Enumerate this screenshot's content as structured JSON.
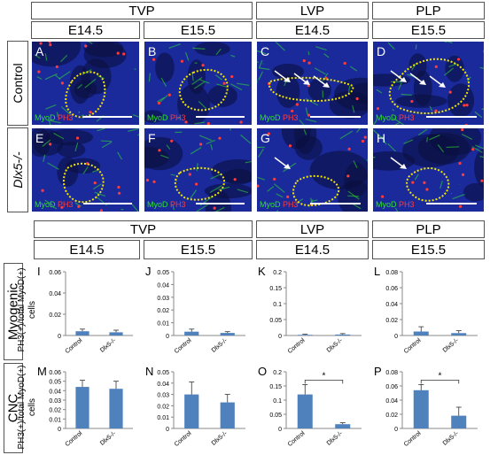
{
  "top": {
    "groups": [
      "TVP",
      "LVP",
      "PLP"
    ],
    "stages": [
      "E14.5",
      "E15.5",
      "E14.5",
      "E15.5"
    ],
    "rows": [
      "Control",
      "Dlx5-/-"
    ],
    "panel_letters": [
      "A",
      "B",
      "C",
      "D",
      "E",
      "F",
      "G",
      "H"
    ],
    "stain": {
      "green": "MyoD",
      "red": "PH3"
    },
    "colors": {
      "nuclei": "#1a2a9a",
      "myod": "#2fe02f",
      "ph3": "#ff3b3b",
      "outline": "#f2e600"
    }
  },
  "bottom": {
    "groups": [
      "TVP",
      "LVP",
      "PLP"
    ],
    "stages": [
      "E14.5",
      "E15.5",
      "E14.5",
      "E15.5"
    ],
    "rows": [
      "Myogenic",
      "CNC"
    ],
    "ylabel": "PH3(+)/total MyoD(+) cells",
    "panel_letters": [
      "I",
      "J",
      "K",
      "L",
      "M",
      "N",
      "O",
      "P"
    ],
    "bar_color": "#4f81bd"
  },
  "chart_data": [
    {
      "panel": "I",
      "type": "bar",
      "categories": [
        "Control",
        "Dlx5-/-"
      ],
      "values": [
        0.004,
        0.003
      ],
      "errors": [
        0.002,
        0.002
      ],
      "ylim": [
        0,
        0.06
      ],
      "yticks": [
        "0",
        "0.02",
        "0.04",
        "0.06"
      ],
      "significance": ""
    },
    {
      "panel": "J",
      "type": "bar",
      "categories": [
        "Control",
        "Dlx5-/-"
      ],
      "values": [
        0.003,
        0.002
      ],
      "errors": [
        0.002,
        0.001
      ],
      "ylim": [
        0,
        0.05
      ],
      "yticks": [
        "0",
        "0.01",
        "0.02",
        "0.03",
        "0.04",
        "0.05"
      ],
      "significance": ""
    },
    {
      "panel": "K",
      "type": "bar",
      "categories": [
        "Control",
        "Dlx5-/-"
      ],
      "values": [
        0.002,
        0.003
      ],
      "errors": [
        0.002,
        0.003
      ],
      "ylim": [
        0,
        0.2
      ],
      "yticks": [
        "0",
        "0.05",
        "0.1",
        "0.15",
        "0.2"
      ],
      "significance": ""
    },
    {
      "panel": "L",
      "type": "bar",
      "categories": [
        "Control",
        "Dlx5-/-"
      ],
      "values": [
        0.005,
        0.003
      ],
      "errors": [
        0.006,
        0.003
      ],
      "ylim": [
        0,
        0.08
      ],
      "yticks": [
        "0",
        "0.02",
        "0.04",
        "0.06",
        "0.08"
      ],
      "significance": ""
    },
    {
      "panel": "M",
      "type": "bar",
      "categories": [
        "Control",
        "Dlx5-/-"
      ],
      "values": [
        0.044,
        0.042
      ],
      "errors": [
        0.007,
        0.008
      ],
      "ylim": [
        0,
        0.06
      ],
      "yticks": [
        "0",
        "0.01",
        "0.02",
        "0.03",
        "0.04",
        "0.05",
        "0.06"
      ],
      "significance": ""
    },
    {
      "panel": "N",
      "type": "bar",
      "categories": [
        "Control",
        "Dlx5-/-"
      ],
      "values": [
        0.03,
        0.023
      ],
      "errors": [
        0.011,
        0.007
      ],
      "ylim": [
        0,
        0.05
      ],
      "yticks": [
        "0",
        "0.01",
        "0.02",
        "0.03",
        "0.04",
        "0.05"
      ],
      "significance": ""
    },
    {
      "panel": "O",
      "type": "bar",
      "categories": [
        "Control",
        "Dlx5-/-"
      ],
      "values": [
        0.12,
        0.015
      ],
      "errors": [
        0.035,
        0.005
      ],
      "ylim": [
        0,
        0.2
      ],
      "yticks": [
        "0",
        "0.05",
        "0.1",
        "0.15",
        "0.2"
      ],
      "significance": "*"
    },
    {
      "panel": "P",
      "type": "bar",
      "categories": [
        "Control",
        "Dlx5-/-"
      ],
      "values": [
        0.054,
        0.018
      ],
      "errors": [
        0.008,
        0.012
      ],
      "ylim": [
        0,
        0.08
      ],
      "yticks": [
        "0",
        "0.02",
        "0.04",
        "0.06",
        "0.08"
      ],
      "significance": "*"
    }
  ]
}
